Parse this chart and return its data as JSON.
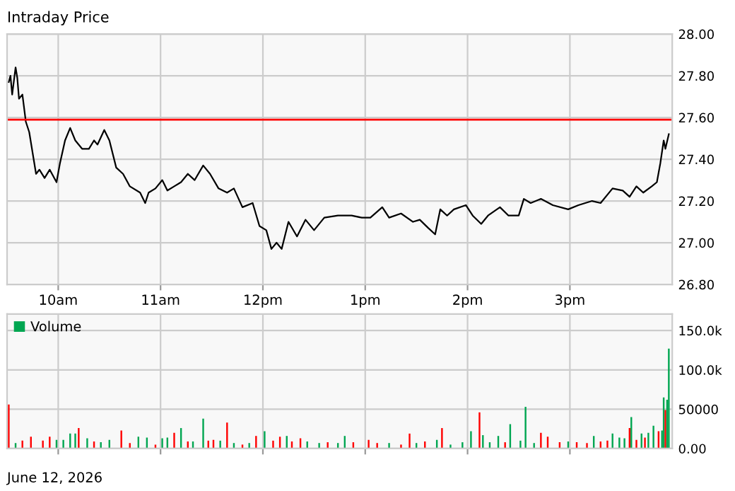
{
  "chart_data": [
    {
      "type": "line",
      "title": "Intraday Price",
      "xlim": [
        "2026-06-12T09:30",
        "2026-06-12T16:00"
      ],
      "ylim": [
        26.8,
        28
      ],
      "xticks": [
        {
          "value": "2026-06-12T10:00",
          "label": "10am"
        },
        {
          "value": "2026-06-12T11:00",
          "label": "11am"
        },
        {
          "value": "2026-06-12T12:00",
          "label": "12pm"
        },
        {
          "value": "2026-06-12T13:00",
          "label": "1pm"
        },
        {
          "value": "2026-06-12T14:00",
          "label": "2pm"
        },
        {
          "value": "2026-06-12T15:00",
          "label": "3pm"
        }
      ],
      "yticks": [
        {
          "value": 26.8,
          "label": "26.80"
        },
        {
          "value": 27,
          "label": "27.00"
        },
        {
          "value": 27.2,
          "label": "27.20"
        },
        {
          "value": 27.4,
          "label": "27.40"
        },
        {
          "value": 27.6,
          "label": "27.60"
        },
        {
          "value": 27.8,
          "label": "27.80"
        },
        {
          "value": 28,
          "label": "28.00"
        }
      ],
      "grid": true,
      "ref_lines": [
        {
          "axis": "y",
          "value": 27.59,
          "color": "#ff0000"
        }
      ],
      "series": [
        {
          "color": "#000000",
          "x": [
            "2026-06-12T09:31",
            "2026-06-12T09:32",
            "2026-06-12T09:33",
            "2026-06-12T09:35",
            "2026-06-12T09:36",
            "2026-06-12T09:37",
            "2026-06-12T09:39",
            "2026-06-12T09:41",
            "2026-06-12T09:43",
            "2026-06-12T09:47",
            "2026-06-12T09:49",
            "2026-06-12T09:52",
            "2026-06-12T09:55",
            "2026-06-12T09:59",
            "2026-06-12T10:01",
            "2026-06-12T10:04",
            "2026-06-12T10:07",
            "2026-06-12T10:10",
            "2026-06-12T10:14",
            "2026-06-12T10:18",
            "2026-06-12T10:21",
            "2026-06-12T10:23",
            "2026-06-12T10:27",
            "2026-06-12T10:30",
            "2026-06-12T10:34",
            "2026-06-12T10:38",
            "2026-06-12T10:42",
            "2026-06-12T10:48",
            "2026-06-12T10:51",
            "2026-06-12T10:53",
            "2026-06-12T10:57",
            "2026-06-12T11:01",
            "2026-06-12T11:04",
            "2026-06-12T11:08",
            "2026-06-12T11:12",
            "2026-06-12T11:16",
            "2026-06-12T11:20",
            "2026-06-12T11:25",
            "2026-06-12T11:29",
            "2026-06-12T11:34",
            "2026-06-12T11:39",
            "2026-06-12T11:43",
            "2026-06-12T11:48",
            "2026-06-12T11:54",
            "2026-06-12T11:58",
            "2026-06-12T12:02",
            "2026-06-12T12:05",
            "2026-06-12T12:08",
            "2026-06-12T12:11",
            "2026-06-12T12:15",
            "2026-06-12T12:20",
            "2026-06-12T12:25",
            "2026-06-12T12:30",
            "2026-06-12T12:36",
            "2026-06-12T12:44",
            "2026-06-12T12:52",
            "2026-06-12T12:58",
            "2026-06-12T13:03",
            "2026-06-12T13:10",
            "2026-06-12T13:14",
            "2026-06-12T13:21",
            "2026-06-12T13:28",
            "2026-06-12T13:32",
            "2026-06-12T13:37",
            "2026-06-12T13:41",
            "2026-06-12T13:44",
            "2026-06-12T13:48",
            "2026-06-12T13:52",
            "2026-06-12T13:59",
            "2026-06-12T14:03",
            "2026-06-12T14:08",
            "2026-06-12T14:12",
            "2026-06-12T14:19",
            "2026-06-12T14:24",
            "2026-06-12T14:30",
            "2026-06-12T14:33",
            "2026-06-12T14:37",
            "2026-06-12T14:43",
            "2026-06-12T14:50",
            "2026-06-12T14:59",
            "2026-06-12T15:05",
            "2026-06-12T15:13",
            "2026-06-12T15:18",
            "2026-06-12T15:25",
            "2026-06-12T15:31",
            "2026-06-12T15:35",
            "2026-06-12T15:39",
            "2026-06-12T15:43",
            "2026-06-12T15:48",
            "2026-06-12T15:51",
            "2026-06-12T15:53",
            "2026-06-12T15:55",
            "2026-06-12T15:56",
            "2026-06-12T15:58"
          ],
          "values": [
            27.77,
            27.8,
            27.71,
            27.84,
            27.79,
            27.69,
            27.71,
            27.58,
            27.53,
            27.33,
            27.35,
            27.31,
            27.35,
            27.29,
            27.38,
            27.49,
            27.55,
            27.49,
            27.45,
            27.45,
            27.49,
            27.47,
            27.54,
            27.49,
            27.36,
            27.33,
            27.27,
            27.24,
            27.19,
            27.24,
            27.26,
            27.3,
            27.25,
            27.27,
            27.29,
            27.33,
            27.3,
            27.37,
            27.33,
            27.26,
            27.24,
            27.26,
            27.17,
            27.19,
            27.08,
            27.06,
            26.97,
            27.0,
            26.97,
            27.1,
            27.03,
            27.11,
            27.06,
            27.12,
            27.13,
            27.13,
            27.12,
            27.12,
            27.17,
            27.12,
            27.14,
            27.1,
            27.11,
            27.07,
            27.04,
            27.16,
            27.13,
            27.16,
            27.18,
            27.13,
            27.09,
            27.13,
            27.17,
            27.13,
            27.13,
            27.21,
            27.19,
            27.21,
            27.18,
            27.16,
            27.18,
            27.2,
            27.19,
            27.26,
            27.25,
            27.22,
            27.27,
            27.24,
            27.27,
            27.29,
            27.38,
            27.49,
            27.45,
            27.52
          ]
        }
      ]
    },
    {
      "type": "bar",
      "xlim": [
        "2026-06-12T09:30",
        "2026-06-12T16:00"
      ],
      "ylim": [
        0,
        171000
      ],
      "xticks": [
        {
          "value": "2026-06-12T10:00",
          "label": null
        },
        {
          "value": "2026-06-12T11:00",
          "label": null
        },
        {
          "value": "2026-06-12T12:00",
          "label": null
        },
        {
          "value": "2026-06-12T13:00",
          "label": null
        },
        {
          "value": "2026-06-12T14:00",
          "label": null
        },
        {
          "value": "2026-06-12T15:00",
          "label": null
        }
      ],
      "yticks": [
        {
          "value": 0,
          "label": "0.00"
        },
        50000,
        {
          "value": 100000,
          "label": "100.0k"
        },
        {
          "value": 150000,
          "label": "150.0k"
        }
      ],
      "tick_labels": "y",
      "grid": true,
      "legend": "top left",
      "annotations": [
        "June 12, 2026"
      ],
      "series": [
        {
          "name": "Volume",
          "x": [
            "2026-06-12T09:31",
            "2026-06-12T09:35",
            "2026-06-12T09:39",
            "2026-06-12T09:44",
            "2026-06-12T09:51",
            "2026-06-12T09:55",
            "2026-06-12T09:59",
            "2026-06-12T10:03",
            "2026-06-12T10:07",
            "2026-06-12T10:10",
            "2026-06-12T10:12",
            "2026-06-12T10:17",
            "2026-06-12T10:21",
            "2026-06-12T10:25",
            "2026-06-12T10:30",
            "2026-06-12T10:37",
            "2026-06-12T10:42",
            "2026-06-12T10:47",
            "2026-06-12T10:52",
            "2026-06-12T10:57",
            "2026-06-12T11:01",
            "2026-06-12T11:04",
            "2026-06-12T11:08",
            "2026-06-12T11:12",
            "2026-06-12T11:16",
            "2026-06-12T11:19",
            "2026-06-12T11:25",
            "2026-06-12T11:28",
            "2026-06-12T11:31",
            "2026-06-12T11:35",
            "2026-06-12T11:39",
            "2026-06-12T11:43",
            "2026-06-12T11:48",
            "2026-06-12T11:52",
            "2026-06-12T11:56",
            "2026-06-12T12:01",
            "2026-06-12T12:06",
            "2026-06-12T12:10",
            "2026-06-12T12:14",
            "2026-06-12T12:17",
            "2026-06-12T12:22",
            "2026-06-12T12:26",
            "2026-06-12T12:33",
            "2026-06-12T12:38",
            "2026-06-12T12:44",
            "2026-06-12T12:48",
            "2026-06-12T12:53",
            "2026-06-12T13:02",
            "2026-06-12T13:07",
            "2026-06-12T13:14",
            "2026-06-12T13:21",
            "2026-06-12T13:26",
            "2026-06-12T13:30",
            "2026-06-12T13:35",
            "2026-06-12T13:42",
            "2026-06-12T13:45",
            "2026-06-12T13:50",
            "2026-06-12T13:57",
            "2026-06-12T14:02",
            "2026-06-12T14:07",
            "2026-06-12T14:09",
            "2026-06-12T14:13",
            "2026-06-12T14:18",
            "2026-06-12T14:22",
            "2026-06-12T14:25",
            "2026-06-12T14:31",
            "2026-06-12T14:34",
            "2026-06-12T14:39",
            "2026-06-12T14:43",
            "2026-06-12T14:47",
            "2026-06-12T14:54",
            "2026-06-12T14:59",
            "2026-06-12T15:04",
            "2026-06-12T15:10",
            "2026-06-12T15:14",
            "2026-06-12T15:18",
            "2026-06-12T15:22",
            "2026-06-12T15:25",
            "2026-06-12T15:29",
            "2026-06-12T15:32",
            "2026-06-12T15:35",
            "2026-06-12T15:36",
            "2026-06-12T15:39",
            "2026-06-12T15:42",
            "2026-06-12T15:44",
            "2026-06-12T15:46",
            "2026-06-12T15:49",
            "2026-06-12T15:52",
            "2026-06-12T15:54",
            "2026-06-12T15:55",
            "2026-06-12T15:56",
            "2026-06-12T15:57",
            "2026-06-12T15:58"
          ],
          "values": [
            56000,
            7000,
            10000,
            15000,
            10000,
            15000,
            11000,
            11000,
            19000,
            19000,
            26000,
            13000,
            9000,
            8000,
            11000,
            23000,
            7000,
            15000,
            14000,
            5000,
            13000,
            14000,
            20000,
            26000,
            9000,
            9000,
            38000,
            10000,
            11000,
            10000,
            33000,
            7000,
            5000,
            7000,
            16000,
            22000,
            10000,
            15000,
            16000,
            9000,
            13000,
            9000,
            7000,
            8000,
            7000,
            16000,
            8000,
            11000,
            7000,
            7000,
            5000,
            19000,
            7000,
            9000,
            11000,
            26000,
            5000,
            8000,
            22000,
            46000,
            17000,
            8000,
            16000,
            8000,
            31000,
            10000,
            53000,
            7000,
            20000,
            15000,
            8000,
            9000,
            8000,
            7000,
            16000,
            9000,
            10000,
            19000,
            14000,
            13000,
            26000,
            40000,
            11000,
            19000,
            14000,
            20000,
            29000,
            22000,
            23000,
            65000,
            49000,
            62000,
            127000
          ],
          "colors": [
            "#ff0000",
            "#00a651",
            "#ff0000",
            "#ff0000",
            "#ff0000",
            "#ff0000",
            "#00a651",
            "#00a651",
            "#00a651",
            "#00a651",
            "#ff0000",
            "#00a651",
            "#ff0000",
            "#00a651",
            "#00a651",
            "#ff0000",
            "#ff0000",
            "#00a651",
            "#00a651",
            "#ff0000",
            "#00a651",
            "#00a651",
            "#ff0000",
            "#00a651",
            "#ff0000",
            "#00a651",
            "#00a651",
            "#ff0000",
            "#ff0000",
            "#00a651",
            "#ff0000",
            "#00a651",
            "#ff0000",
            "#00a651",
            "#ff0000",
            "#00a651",
            "#ff0000",
            "#ff0000",
            "#00a651",
            "#ff0000",
            "#ff0000",
            "#00a651",
            "#00a651",
            "#ff0000",
            "#00a651",
            "#00a651",
            "#ff0000",
            "#ff0000",
            "#ff0000",
            "#00a651",
            "#ff0000",
            "#ff0000",
            "#00a651",
            "#ff0000",
            "#00a651",
            "#ff0000",
            "#00a651",
            "#00a651",
            "#00a651",
            "#ff0000",
            "#00a651",
            "#00a651",
            "#00a651",
            "#ff0000",
            "#00a651",
            "#00a651",
            "#00a651",
            "#00a651",
            "#ff0000",
            "#ff0000",
            "#ff0000",
            "#00a651",
            "#ff0000",
            "#ff0000",
            "#00a651",
            "#ff0000",
            "#ff0000",
            "#00a651",
            "#00a651",
            "#00a651",
            "#ff0000",
            "#00a651",
            "#ff0000",
            "#00a651",
            "#ff0000",
            "#00a651",
            "#00a651",
            "#ff0000",
            "#00a651",
            "#00a651",
            "#ff0000",
            "#00a651",
            "#00a651"
          ]
        }
      ]
    }
  ]
}
